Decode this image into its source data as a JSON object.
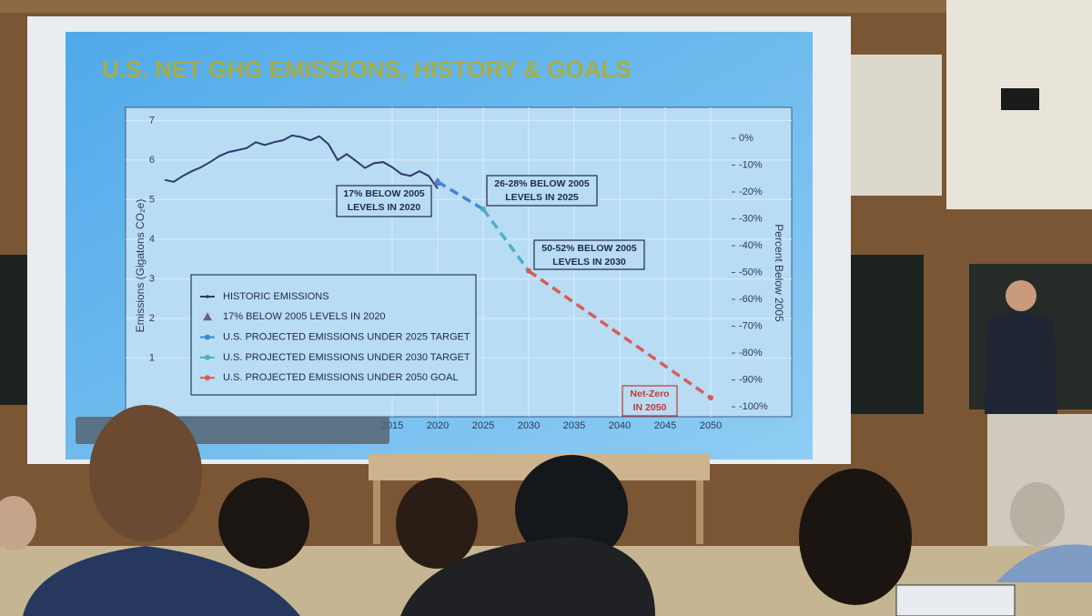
{
  "chart_data": {
    "type": "line",
    "title": "U.S. NET GHG EMISSIONS, HISTORY & GOALS",
    "y_label": "Emissions (Gigatons CO₂e)",
    "y2_label": "Percent Below 2005",
    "xlim": [
      1985.7,
      2058.9
    ],
    "xticks": [
      2015,
      2020,
      2025,
      2030,
      2035,
      2040,
      2045,
      2050
    ],
    "ylim": [
      -0.48,
      7.33
    ],
    "yticks": [
      1,
      2,
      3,
      4,
      5,
      6,
      7
    ],
    "y2lim": [
      -103.7,
      11.5
    ],
    "y2ticks": [
      {
        "value": 0,
        "label": "0%"
      },
      {
        "value": -10,
        "label": "-10%"
      },
      {
        "value": -20,
        "label": "-20%"
      },
      {
        "value": -30,
        "label": "-30%"
      },
      {
        "value": -40,
        "label": "-40%"
      },
      {
        "value": -50,
        "label": "-50%"
      },
      {
        "value": -60,
        "label": "-60%"
      },
      {
        "value": -70,
        "label": "-70%"
      },
      {
        "value": -80,
        "label": "-80%"
      },
      {
        "value": -90,
        "label": "-90%"
      },
      {
        "value": -100,
        "label": "-100%"
      }
    ],
    "grid": true,
    "series": [
      {
        "name": "HISTORIC EMISSIONS",
        "color": "#2c3b6b",
        "style": "solid",
        "x": [
          1990,
          1991,
          1992,
          1993,
          1994,
          1995,
          1996,
          1997,
          1998,
          1999,
          2000,
          2001,
          2002,
          2003,
          2004,
          2005,
          2006,
          2007,
          2008,
          2009,
          2010,
          2011,
          2012,
          2013,
          2014,
          2015,
          2016,
          2017,
          2018,
          2019,
          2020
        ],
        "values": [
          5.5,
          5.45,
          5.6,
          5.72,
          5.82,
          5.95,
          6.1,
          6.2,
          6.25,
          6.3,
          6.45,
          6.38,
          6.45,
          6.5,
          6.62,
          6.58,
          6.5,
          6.6,
          6.4,
          6.0,
          6.15,
          5.98,
          5.8,
          5.92,
          5.95,
          5.82,
          5.65,
          5.6,
          5.72,
          5.6,
          5.28
        ]
      },
      {
        "name": "17% BELOW 2005 LEVELS IN 2020",
        "color": "#6b5f8e",
        "style": "triangle",
        "x": [
          2020
        ],
        "values": [
          5.45
        ]
      },
      {
        "name": "U.S. PROJECTED EMISSIONS UNDER 2025 TARGET",
        "color": "#3f86d6",
        "style": "dashed",
        "x": [
          2020,
          2025
        ],
        "values": [
          5.45,
          4.76
        ]
      },
      {
        "name": "U.S. PROJECTED EMISSIONS UNDER 2030 TARGET",
        "color": "#4fb0c4",
        "style": "dashed",
        "x": [
          2025,
          2030
        ],
        "values": [
          4.76,
          3.2
        ]
      },
      {
        "name": "U.S. PROJECTED EMISSIONS UNDER 2050 GOAL",
        "color": "#d45f58",
        "style": "dashed",
        "x": [
          2030,
          2050
        ],
        "values": [
          3.2,
          0
        ]
      }
    ],
    "annotations": [
      {
        "lines": [
          "17% BELOW 2005",
          "LEVELS IN 2020"
        ]
      },
      {
        "lines": [
          "26-28% BELOW 2005",
          "LEVELS IN 2025"
        ]
      },
      {
        "lines": [
          "50-52% BELOW 2005",
          "LEVELS IN 2030"
        ]
      },
      {
        "lines": [
          "Net-Zero",
          "IN 2050"
        ]
      }
    ]
  }
}
